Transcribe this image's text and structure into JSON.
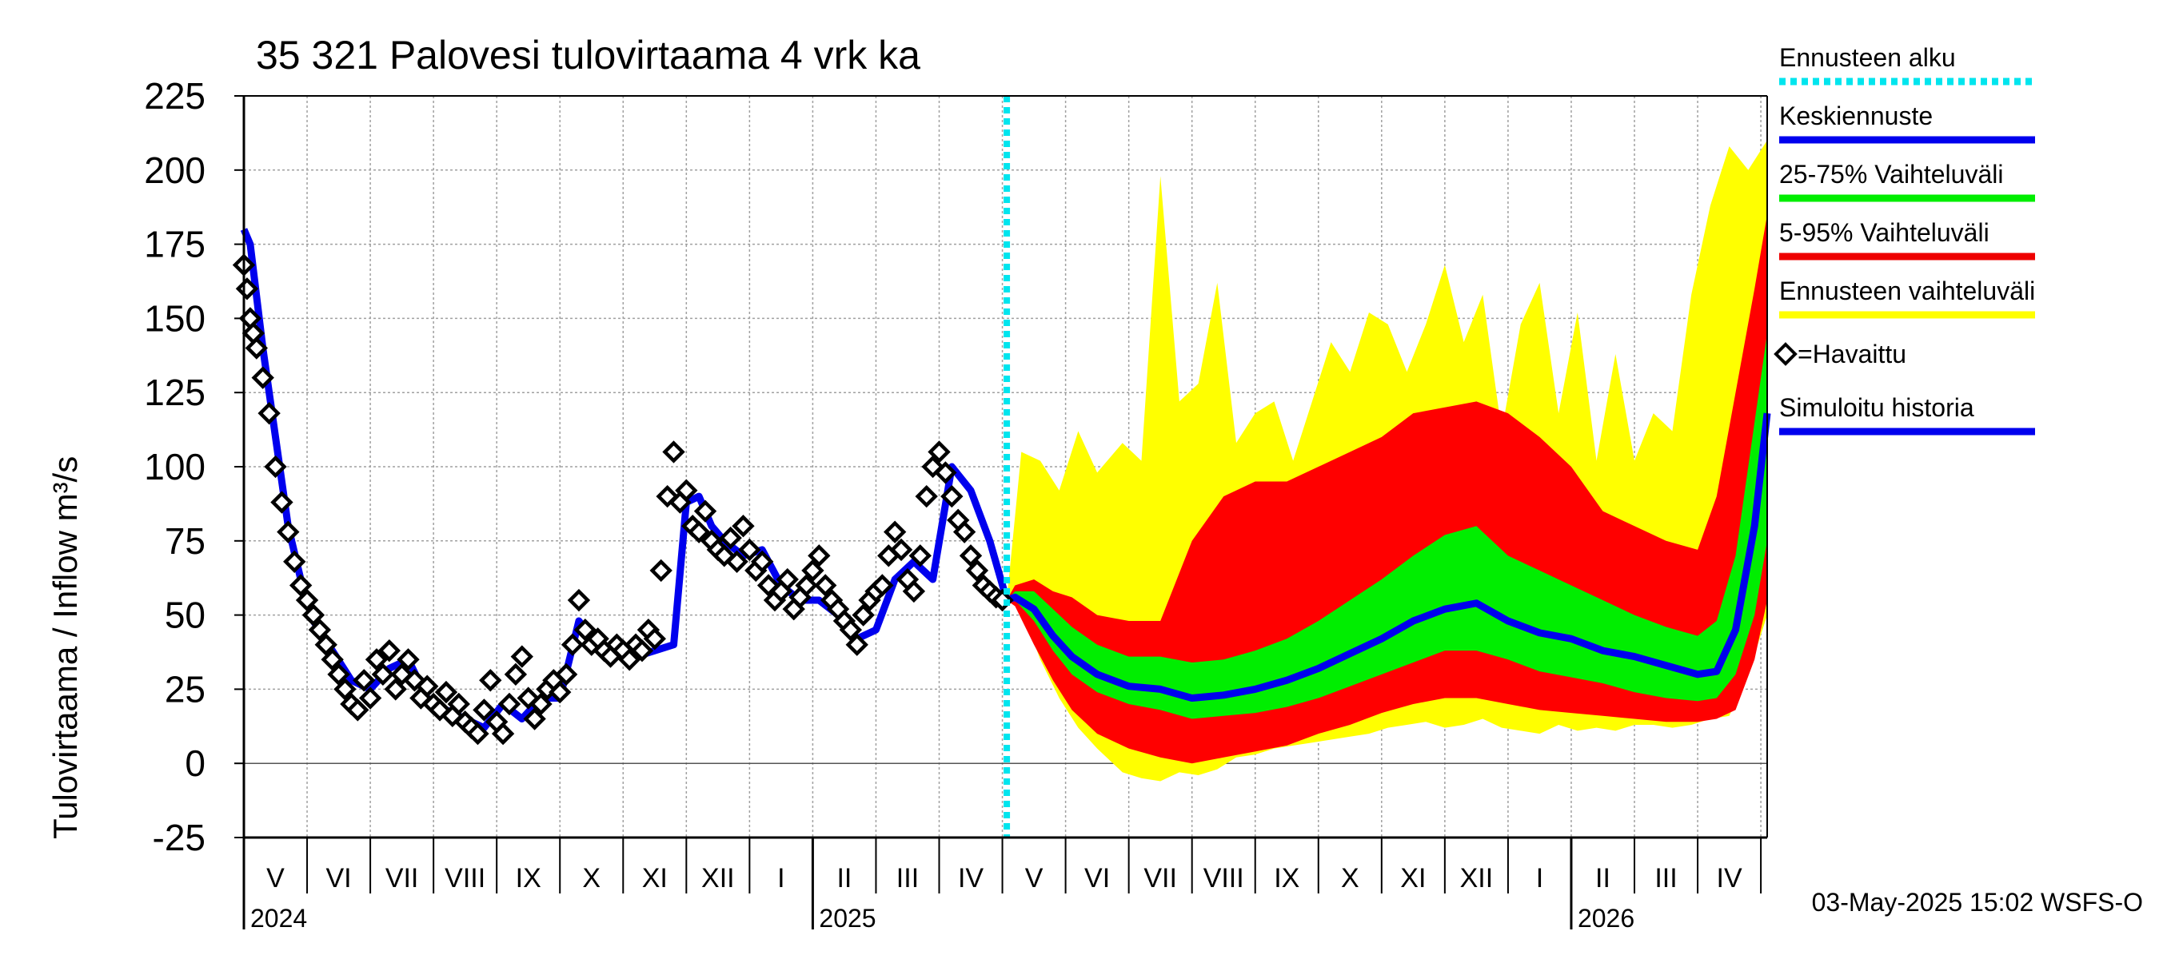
{
  "chart_data": {
    "type": "area",
    "title": "35 321 Palovesi tulovirtaama 4 vrk ka",
    "ylabel": "Tulovirtaama / Inflow    m³/s",
    "ylim": [
      -25,
      225
    ],
    "yticks": [
      -25,
      0,
      25,
      50,
      75,
      100,
      125,
      150,
      175,
      200,
      225
    ],
    "x_unit": "months since 2024-04-01",
    "xlim": [
      1.0,
      25.1
    ],
    "forecast_start": 13.07,
    "month_labels": [
      "V",
      "VI",
      "VII",
      "VIII",
      "IX",
      "X",
      "XI",
      "XII",
      "I",
      "II",
      "III",
      "IV",
      "V",
      "VI",
      "VII",
      "VIII",
      "IX",
      "X",
      "XI",
      "XII",
      "I",
      "II",
      "III",
      "IV"
    ],
    "year_labels": [
      {
        "text": "2024",
        "x": 1.0
      },
      {
        "text": "2025",
        "x": 10.0
      },
      {
        "text": "2026",
        "x": 22.0
      }
    ],
    "timestamp": "03-May-2025 15:02 WSFS-O",
    "legend": [
      {
        "label": "Ennusteen alku",
        "color": "#00e5ee",
        "style": "dotted"
      },
      {
        "label": "Keskiennuste",
        "color": "#0000ee",
        "style": "line"
      },
      {
        "label": "25-75% Vaihteluväli",
        "color": "#00ee00",
        "style": "line"
      },
      {
        "label": "5-95% Vaihteluväli",
        "color": "#ee0000",
        "style": "line"
      },
      {
        "label": "Ennusteen vaihteluväli",
        "color": "#ffff00",
        "style": "line"
      },
      {
        "label": "=Havaittu",
        "color": "#000000",
        "style": "diamond"
      },
      {
        "label": "Simuloitu historia",
        "color": "#0000ee",
        "style": "line"
      }
    ],
    "series": [
      {
        "name": "Simuloitu historia",
        "x": [
          1.0,
          1.1,
          1.3,
          1.5,
          1.7,
          1.9,
          2.1,
          2.4,
          2.7,
          3.0,
          3.3,
          3.6,
          3.9,
          4.2,
          4.5,
          4.8,
          5.1,
          5.4,
          5.7,
          6.0,
          6.3,
          6.6,
          6.9,
          7.2,
          7.5,
          7.8,
          8.0,
          8.2,
          8.4,
          8.6,
          8.9,
          9.2,
          9.5,
          9.8,
          10.1,
          10.4,
          10.7,
          11.0,
          11.3,
          11.6,
          11.9,
          12.2,
          12.5,
          12.8,
          13.07
        ],
        "y": [
          180,
          175,
          140,
          110,
          80,
          62,
          48,
          38,
          28,
          25,
          32,
          35,
          22,
          18,
          15,
          12,
          20,
          15,
          22,
          22,
          48,
          40,
          38,
          36,
          38,
          40,
          88,
          90,
          80,
          75,
          70,
          72,
          60,
          55,
          55,
          50,
          42,
          45,
          62,
          68,
          62,
          100,
          92,
          75,
          55
        ]
      },
      {
        "name": "Havaittu",
        "x": [
          1.0,
          1.05,
          1.1,
          1.15,
          1.2,
          1.3,
          1.4,
          1.5,
          1.6,
          1.7,
          1.8,
          1.9,
          2.0,
          2.1,
          2.2,
          2.3,
          2.4,
          2.5,
          2.6,
          2.7,
          2.8,
          2.9,
          3.0,
          3.1,
          3.2,
          3.3,
          3.4,
          3.5,
          3.6,
          3.7,
          3.8,
          3.9,
          4.0,
          4.1,
          4.2,
          4.3,
          4.4,
          4.5,
          4.6,
          4.7,
          4.8,
          4.9,
          5.0,
          5.1,
          5.2,
          5.3,
          5.4,
          5.5,
          5.6,
          5.7,
          5.8,
          5.9,
          6.0,
          6.1,
          6.2,
          6.3,
          6.4,
          6.5,
          6.6,
          6.7,
          6.8,
          6.9,
          7.0,
          7.1,
          7.2,
          7.3,
          7.4,
          7.5,
          7.6,
          7.7,
          7.8,
          7.9,
          8.0,
          8.1,
          8.2,
          8.3,
          8.4,
          8.5,
          8.6,
          8.7,
          8.8,
          8.9,
          9.0,
          9.1,
          9.2,
          9.3,
          9.4,
          9.5,
          9.6,
          9.7,
          9.8,
          9.9,
          10.0,
          10.1,
          10.2,
          10.3,
          10.4,
          10.5,
          10.6,
          10.7,
          10.8,
          10.9,
          11.0,
          11.1,
          11.2,
          11.3,
          11.4,
          11.5,
          11.6,
          11.7,
          11.8,
          11.9,
          12.0,
          12.1,
          12.2,
          12.3,
          12.4,
          12.5,
          12.6,
          12.7,
          12.8,
          12.9,
          13.0
        ],
        "y": [
          168,
          160,
          150,
          145,
          140,
          130,
          118,
          100,
          88,
          78,
          68,
          60,
          55,
          50,
          45,
          40,
          35,
          30,
          25,
          20,
          18,
          28,
          22,
          35,
          30,
          38,
          25,
          30,
          35,
          28,
          22,
          26,
          20,
          18,
          24,
          16,
          20,
          14,
          12,
          10,
          18,
          28,
          14,
          10,
          20,
          30,
          36,
          22,
          15,
          20,
          25,
          28,
          24,
          30,
          40,
          55,
          45,
          40,
          42,
          38,
          36,
          40,
          38,
          35,
          40,
          38,
          45,
          42,
          65,
          90,
          105,
          88,
          92,
          80,
          78,
          85,
          75,
          72,
          70,
          76,
          68,
          80,
          72,
          65,
          68,
          60,
          55,
          58,
          62,
          52,
          56,
          60,
          65,
          70,
          60,
          55,
          52,
          48,
          45,
          40,
          50,
          55,
          58,
          60,
          70,
          78,
          72,
          62,
          58,
          70,
          90,
          100,
          105,
          98,
          90,
          82,
          78,
          70,
          65,
          60,
          58,
          56,
          55
        ]
      },
      {
        "name": "Keskiennuste",
        "x": [
          13.07,
          13.2,
          13.5,
          13.8,
          14.1,
          14.5,
          15.0,
          15.5,
          16.0,
          16.5,
          17.0,
          17.5,
          18.0,
          18.5,
          19.0,
          19.5,
          20.0,
          20.5,
          21.0,
          21.5,
          22.0,
          22.5,
          23.0,
          23.5,
          24.0,
          24.3,
          24.6,
          24.9,
          25.1
        ],
        "y": [
          55,
          56,
          52,
          43,
          36,
          30,
          26,
          25,
          22,
          23,
          25,
          28,
          32,
          37,
          42,
          48,
          52,
          54,
          48,
          44,
          42,
          38,
          36,
          33,
          30,
          31,
          45,
          80,
          118
        ]
      },
      {
        "name": "25-75% Vaihteluväli",
        "x": [
          13.07,
          13.2,
          13.5,
          13.8,
          14.1,
          14.5,
          15.0,
          15.5,
          16.0,
          16.5,
          17.0,
          17.5,
          18.0,
          18.5,
          19.0,
          19.5,
          20.0,
          20.5,
          21.0,
          21.5,
          22.0,
          22.5,
          23.0,
          23.5,
          24.0,
          24.3,
          24.6,
          24.9,
          25.1
        ],
        "low": [
          55,
          55,
          48,
          38,
          30,
          24,
          20,
          18,
          15,
          16,
          17,
          19,
          22,
          26,
          30,
          34,
          38,
          38,
          35,
          31,
          29,
          27,
          24,
          22,
          21,
          22,
          30,
          50,
          75
        ],
        "high": [
          55,
          58,
          58,
          52,
          46,
          40,
          36,
          36,
          34,
          35,
          38,
          42,
          48,
          55,
          62,
          70,
          77,
          80,
          70,
          65,
          60,
          55,
          50,
          46,
          43,
          48,
          70,
          115,
          145
        ]
      },
      {
        "name": "5-95% Vaihteluväli",
        "x": [
          13.07,
          13.2,
          13.5,
          13.8,
          14.1,
          14.5,
          15.0,
          15.5,
          16.0,
          16.5,
          17.0,
          17.5,
          18.0,
          18.5,
          19.0,
          19.5,
          20.0,
          20.5,
          21.0,
          21.5,
          22.0,
          22.5,
          23.0,
          23.5,
          24.0,
          24.3,
          24.6,
          24.9,
          25.1
        ],
        "low": [
          55,
          53,
          40,
          28,
          18,
          10,
          5,
          2,
          0,
          2,
          4,
          6,
          10,
          13,
          17,
          20,
          22,
          22,
          20,
          18,
          17,
          16,
          15,
          14,
          14,
          15,
          18,
          35,
          55
        ],
        "high": [
          55,
          60,
          62,
          58,
          56,
          50,
          48,
          48,
          75,
          90,
          95,
          95,
          100,
          105,
          110,
          118,
          120,
          122,
          118,
          110,
          100,
          85,
          80,
          75,
          72,
          90,
          125,
          160,
          185
        ]
      },
      {
        "name": "Ennusteen vaihteluväli",
        "x": [
          13.07,
          13.3,
          13.6,
          13.9,
          14.2,
          14.5,
          14.9,
          15.2,
          15.5,
          15.8,
          16.1,
          16.4,
          16.7,
          17.0,
          17.3,
          17.6,
          17.9,
          18.2,
          18.5,
          18.8,
          19.1,
          19.4,
          19.7,
          20.0,
          20.3,
          20.6,
          20.9,
          21.2,
          21.5,
          21.8,
          22.1,
          22.4,
          22.7,
          23.0,
          23.3,
          23.6,
          23.9,
          24.2,
          24.5,
          24.8,
          25.1
        ],
        "low": [
          55,
          52,
          35,
          22,
          12,
          5,
          -3,
          -5,
          -6,
          -3,
          -4,
          -2,
          2,
          3,
          5,
          6,
          7,
          8,
          9,
          10,
          12,
          13,
          14,
          12,
          13,
          15,
          12,
          11,
          10,
          13,
          11,
          12,
          11,
          13,
          13,
          12,
          13,
          15,
          16,
          30,
          50
        ],
        "high": [
          55,
          105,
          102,
          92,
          112,
          98,
          108,
          102,
          198,
          122,
          128,
          162,
          108,
          118,
          122,
          102,
          122,
          142,
          132,
          152,
          148,
          132,
          148,
          168,
          142,
          158,
          112,
          148,
          162,
          118,
          152,
          102,
          138,
          102,
          118,
          112,
          158,
          188,
          208,
          200,
          210
        ]
      }
    ]
  }
}
